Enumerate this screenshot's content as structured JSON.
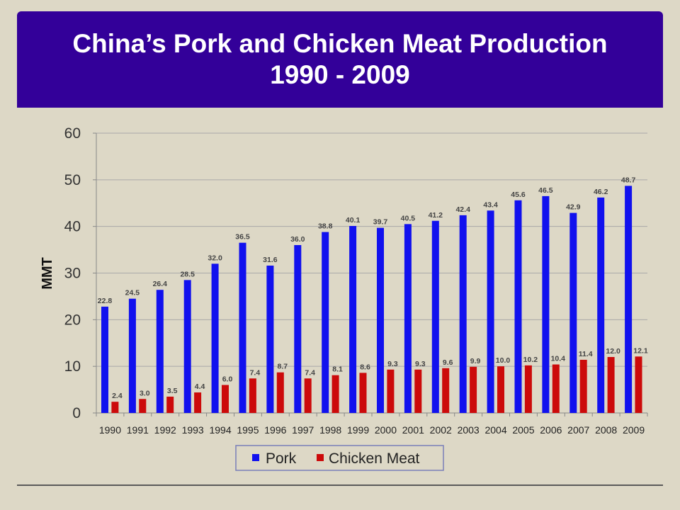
{
  "slide": {
    "title_line1": "China’s Pork and Chicken Meat Production",
    "title_line2": "1990 - 2009"
  },
  "chart_data": {
    "type": "bar",
    "title": "",
    "xlabel": "",
    "ylabel": "MMT",
    "ylim": [
      0,
      60
    ],
    "yticks": [
      0,
      10,
      20,
      30,
      40,
      50,
      60
    ],
    "grid": true,
    "legend_position": "bottom",
    "categories": [
      "1990",
      "1991",
      "1992",
      "1993",
      "1994",
      "1995",
      "1996",
      "1997",
      "1998",
      "1999",
      "2000",
      "2001",
      "2002",
      "2003",
      "2004",
      "2005",
      "2006",
      "2007",
      "2008",
      "2009"
    ],
    "series": [
      {
        "name": "Pork",
        "color": "#1111ee",
        "values": [
          22.8,
          24.5,
          26.4,
          28.5,
          32.0,
          36.5,
          31.6,
          36.0,
          38.8,
          40.1,
          39.7,
          40.5,
          41.2,
          42.4,
          43.4,
          45.6,
          46.5,
          42.9,
          46.2,
          48.7
        ],
        "labels": [
          "22.8",
          "24.5",
          "26.4",
          "28.5",
          "32.0",
          "36.5",
          "31.6",
          "36.0",
          "38.8",
          "40.1",
          "39.7",
          "40.5",
          "41.2",
          "42.4",
          "43.4",
          "45.6",
          "46.5",
          "42.9",
          "46.2",
          "48.7"
        ]
      },
      {
        "name": "Chicken Meat",
        "color": "#cc0a0a",
        "values": [
          2.4,
          3.0,
          3.5,
          4.4,
          6.0,
          7.4,
          8.7,
          7.4,
          8.1,
          8.6,
          9.3,
          9.3,
          9.6,
          9.9,
          10.0,
          10.2,
          10.4,
          11.4,
          12.0,
          12.1
        ],
        "labels": [
          "2.4",
          "3.0",
          "3.5",
          "4.4",
          "6.0",
          "7.4",
          "8.7",
          "7.4",
          "8.1",
          "8.6",
          "9.3",
          "9.3",
          "9.6",
          "9.9",
          "10.0",
          "10.2",
          "10.4",
          "11.4",
          "12.0",
          "12.1"
        ]
      }
    ]
  }
}
